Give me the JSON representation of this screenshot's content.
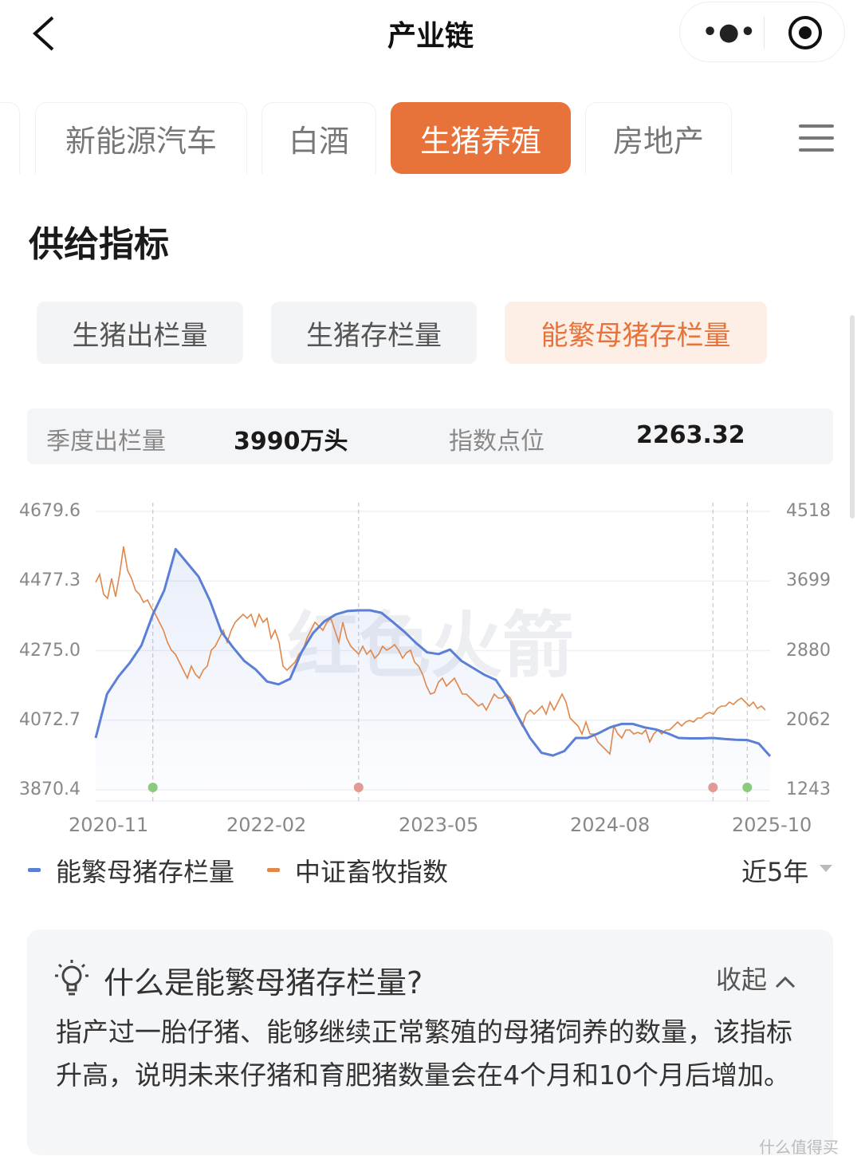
{
  "header": {
    "title": "产业链",
    "more_icon": "more-dots-icon",
    "close_icon": "target-icon"
  },
  "industry_tabs": [
    {
      "label": "新能源汽车"
    },
    {
      "label": "白酒"
    },
    {
      "label": "生猪养殖",
      "active": true
    },
    {
      "label": "房地产"
    }
  ],
  "section_title": "供给指标",
  "sub_tabs": [
    {
      "label": "生猪出栏量"
    },
    {
      "label": "生猪存栏量"
    },
    {
      "label": "能繁母猪存栏量",
      "active": true
    }
  ],
  "stats": {
    "label1": "季度出栏量",
    "value1": "3990万头",
    "label2": "指数点位",
    "value2": "2263.32"
  },
  "colors": {
    "accent": "#E8733A",
    "blue": "#5B7FD6",
    "orange": "#E0874A"
  },
  "chart_data": {
    "type": "line",
    "x_start": "2020-11",
    "x_end": "2025-10",
    "x_ticks": [
      "2020-11",
      "2022-02",
      "2023-05",
      "2024-08",
      "2025-10"
    ],
    "y_left": {
      "ticks": [
        "4679.6",
        "4477.3",
        "4275.0",
        "4072.7",
        "3870.4"
      ],
      "range": [
        3870.4,
        4679.6
      ]
    },
    "y_right": {
      "ticks": [
        "4518",
        "3699",
        "2880",
        "2062",
        "1243"
      ],
      "range": [
        1243,
        4518
      ]
    },
    "grid": true,
    "legend_position": "bottom",
    "series": [
      {
        "name": "能繁母猪存栏量",
        "axis": "left",
        "color": "#5B7FD6",
        "area": true,
        "frequency": "monthly",
        "values": [
          4021,
          4149,
          4200,
          4240,
          4290,
          4380,
          4450,
          4570,
          4530,
          4490,
          4420,
          4330,
          4285,
          4245,
          4220,
          4185,
          4177,
          4193,
          4270,
          4325,
          4360,
          4380,
          4390,
          4392,
          4392,
          4385,
          4358,
          4330,
          4298,
          4270,
          4265,
          4278,
          4245,
          4225,
          4205,
          4190,
          4140,
          4080,
          4021,
          3978,
          3970,
          3983,
          4021,
          4021,
          4035,
          4052,
          4062,
          4062,
          4052,
          4046,
          4035,
          4021,
          4020,
          4020,
          4021,
          4018,
          4016,
          4015,
          4005,
          3968
        ]
      },
      {
        "name": "中证畜牧指数",
        "axis": "right",
        "color": "#E0874A",
        "values": [
          3683,
          3777,
          3542,
          3495,
          3730,
          3514,
          3777,
          4105,
          3824,
          3730,
          3589,
          3542,
          3448,
          3476,
          3383,
          3307,
          3214,
          3120,
          2979,
          2885,
          2838,
          2744,
          2651,
          2557,
          2698,
          2604,
          2557,
          2651,
          2698,
          2885,
          2932,
          3026,
          3120,
          2979,
          3120,
          3214,
          3261,
          3307,
          3261,
          3307,
          3167,
          3307,
          3214,
          3261,
          3026,
          3120,
          2979,
          2698,
          2651,
          2698,
          2744,
          2838,
          2885,
          3026,
          3120,
          3214,
          3167,
          3120,
          3214,
          3261,
          3120,
          2979,
          3214,
          3026,
          2932,
          2885,
          2838,
          2932,
          2838,
          2885,
          2791,
          2838,
          2932,
          2885,
          2913,
          2951,
          2885,
          2791,
          2857,
          2885,
          2744,
          2698,
          2604,
          2463,
          2369,
          2388,
          2510,
          2557,
          2463,
          2510,
          2557,
          2463,
          2369,
          2369,
          2322,
          2275,
          2228,
          2256,
          2181,
          2275,
          2369,
          2322,
          2322,
          2369,
          2322,
          2228,
          2088,
          1994,
          2134,
          2181,
          2134,
          2181,
          2228,
          2134,
          2275,
          2181,
          2275,
          2369,
          2275,
          2088,
          2041,
          1994,
          1900,
          2041,
          1900,
          1900,
          1806,
          1759,
          1712,
          1665,
          1994,
          1900,
          1853,
          1947,
          1947,
          1900,
          1919,
          1900,
          1947,
          1806,
          1900,
          1947,
          1900,
          1947,
          1947,
          1994,
          2041,
          1994,
          2041,
          2059,
          2041,
          2088,
          2088,
          2134,
          2153,
          2134,
          2200,
          2228,
          2228,
          2275,
          2247,
          2294,
          2322,
          2275,
          2228,
          2275,
          2200,
          2228,
          2181
        ]
      }
    ],
    "markers": [
      {
        "date": "2021-04",
        "color": "#8CCB7E"
      },
      {
        "date": "2022-10",
        "color": "#E59A92"
      },
      {
        "date": "2025-05",
        "color": "#E59A92"
      },
      {
        "date": "2025-08",
        "color": "#8CCB7E"
      }
    ],
    "watermark": "红色火箭"
  },
  "range_select": {
    "value": "近5年"
  },
  "info_card": {
    "icon": "lightbulb-icon",
    "title": "什么是能繁母猪存栏量?",
    "toggle": "收起",
    "body": "指产过一胎仔猪、能够继续正常繁殖的母猪饲养的数量，该指标升高，说明未来仔猪和育肥猪数量会在4个月和10个月后增加。"
  },
  "corner_watermark": "什么值得买"
}
